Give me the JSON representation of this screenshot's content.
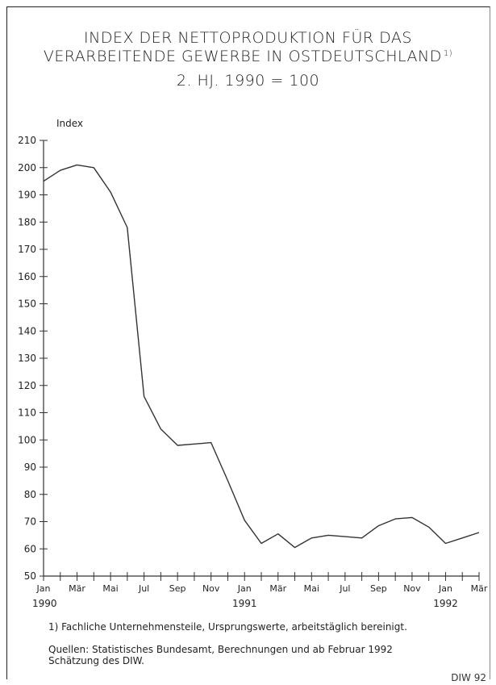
{
  "chart_data": {
    "type": "line",
    "title": "INDEX DER NETTOPRODUKTION FÜR DAS",
    "title_line2": "VERARBEITENDE GEWERBE IN OSTDEUTSCHLAND",
    "title_footnote_mark": "1)",
    "subtitle": "2. HJ. 1990 = 100",
    "ylabel": "Index",
    "ylim": [
      50,
      210
    ],
    "yticks": [
      50,
      60,
      70,
      80,
      90,
      100,
      110,
      120,
      130,
      140,
      150,
      160,
      170,
      180,
      190,
      200,
      210
    ],
    "x_tick_labels": [
      "Jan",
      "Mär",
      "Mai",
      "Jul",
      "Sep",
      "Nov",
      "Jan",
      "Mär",
      "Mai",
      "Jul",
      "Sep",
      "Nov",
      "Jan",
      "Mär"
    ],
    "x_year_labels": [
      "1990",
      "1991",
      "1992"
    ],
    "series": [
      {
        "values": [
          195,
          199,
          201,
          200,
          191,
          178,
          116,
          104,
          98,
          98.5,
          99,
          85,
          70.5,
          62,
          65.5,
          60.5,
          64,
          65,
          64.5,
          64,
          68.5,
          71,
          71.5,
          68,
          62,
          64,
          66
        ]
      }
    ],
    "color": "#333333"
  },
  "footnotes": {
    "note1": "1) Fachliche Unternehmensteile, Ursprungswerte, arbeitstäglich bereinigt.",
    "sources_line1": "Quellen: Statistisches Bundesamt, Berechnungen und ab Februar 1992",
    "sources_line2": "Schätzung des DIW."
  },
  "credit": "DIW 92"
}
